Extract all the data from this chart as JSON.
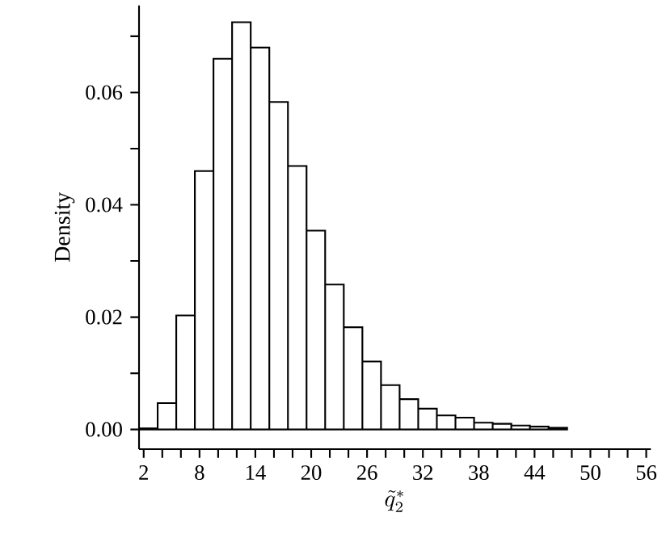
{
  "chart_data": {
    "type": "histogram",
    "xlabel": "\\tilde{q}_2^{*}",
    "ylabel": "Density",
    "color": "#ffffff",
    "bins": [
      1.5,
      3.5,
      5.5,
      7.5,
      9.5,
      11.5,
      13.5,
      15.5,
      17.5,
      19.5,
      21.5,
      23.5,
      25.5,
      27.5,
      29.5,
      31.5,
      33.5,
      35.5,
      37.5,
      39.5,
      41.5,
      43.5,
      45.5,
      47.5
    ],
    "values": [
      0.0002,
      0.0047,
      0.0203,
      0.046,
      0.066,
      0.0725,
      0.068,
      0.0583,
      0.0469,
      0.0354,
      0.0258,
      0.0182,
      0.0121,
      0.0079,
      0.0054,
      0.0037,
      0.0025,
      0.0021,
      0.0012,
      0.001,
      0.0007,
      0.0005,
      0.0003
    ],
    "xlim": [
      1.5,
      56.5
    ],
    "ylim": [
      -0.0035,
      0.0755
    ],
    "xticks": [
      2,
      {
        "value": 4,
        "label": null
      },
      {
        "value": 6,
        "label": null
      },
      8,
      {
        "value": 10,
        "label": null
      },
      {
        "value": 12,
        "label": null
      },
      14,
      {
        "value": 16,
        "label": null
      },
      {
        "value": 18,
        "label": null
      },
      20,
      {
        "value": 22,
        "label": null
      },
      {
        "value": 24,
        "label": null
      },
      26,
      {
        "value": 28,
        "label": null
      },
      {
        "value": 30,
        "label": null
      },
      32,
      {
        "value": 34,
        "label": null
      },
      {
        "value": 36,
        "label": null
      },
      38,
      {
        "value": 40,
        "label": null
      },
      {
        "value": 42,
        "label": null
      },
      44,
      {
        "value": 46,
        "label": null
      },
      {
        "value": 48,
        "label": null
      },
      50,
      {
        "value": 52,
        "label": null
      },
      {
        "value": 54,
        "label": null
      },
      56
    ],
    "yticks": [
      {
        "value": 0,
        "label": "0.00"
      },
      {
        "value": 0.01,
        "label": null
      },
      {
        "value": 0.02,
        "label": "0.02"
      },
      {
        "value": 0.03,
        "label": null
      },
      {
        "value": 0.04,
        "label": "0.04"
      },
      {
        "value": 0.05,
        "label": null
      },
      {
        "value": 0.06,
        "label": "0.06"
      },
      {
        "value": 0.07,
        "label": null
      }
    ]
  }
}
